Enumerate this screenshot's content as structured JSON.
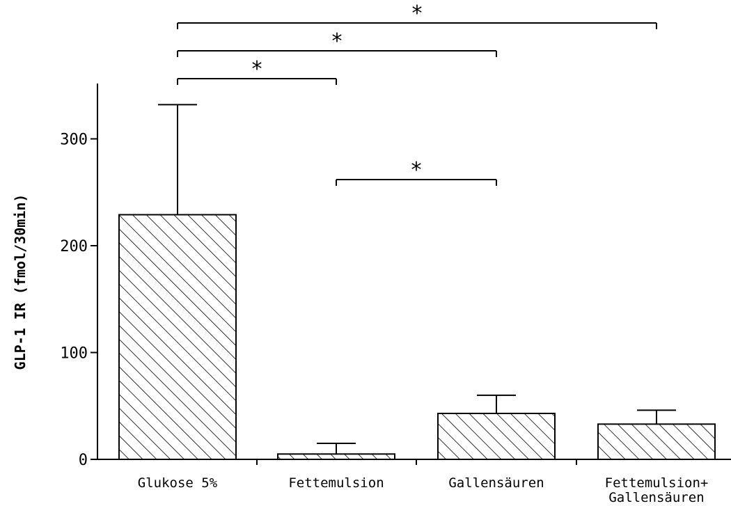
{
  "chart_data": {
    "type": "bar",
    "title": "",
    "xlabel": "",
    "ylabel": "GLP-1 IR (fmol/30min)",
    "ylim": [
      0,
      350
    ],
    "yticks": [
      0,
      100,
      200,
      300
    ],
    "grid": false,
    "bar_fill": "diagonal-hatch",
    "categories": [
      [
        "Glukose 5%"
      ],
      [
        "Fettemulsion"
      ],
      [
        "Gallensäuren"
      ],
      [
        "Fettemulsion+",
        "Gallensäuren"
      ]
    ],
    "values": [
      229,
      5,
      43,
      33
    ],
    "error_upper": [
      332,
      15,
      60,
      46
    ],
    "significance": [
      {
        "from": 0,
        "to": 3,
        "label": "*"
      },
      {
        "from": 0,
        "to": 2,
        "label": "*"
      },
      {
        "from": 0,
        "to": 1,
        "label": "*"
      },
      {
        "from": 1,
        "to": 2,
        "label": "*"
      }
    ]
  }
}
